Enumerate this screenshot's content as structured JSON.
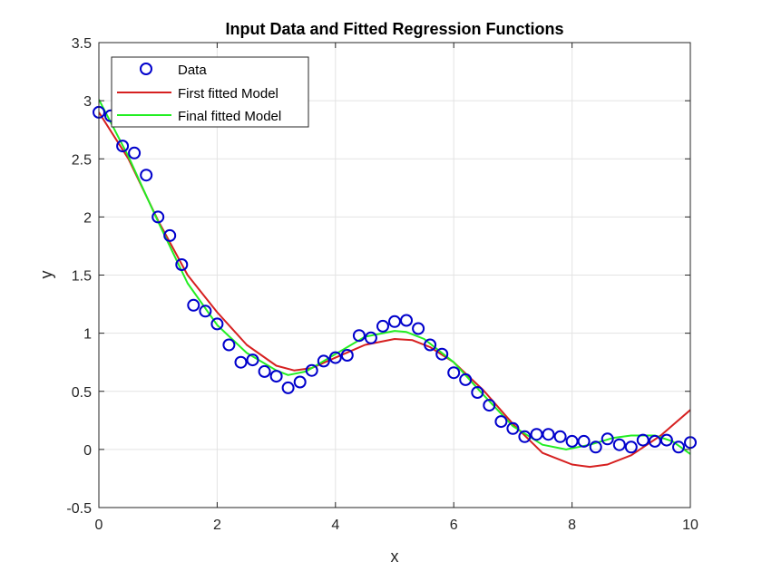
{
  "chart_data": {
    "type": "line",
    "title": "Input Data and Fitted Regression Functions",
    "xlabel": "x",
    "ylabel": "y",
    "xlim": [
      0,
      10
    ],
    "ylim": [
      -0.5,
      3.5
    ],
    "xticks": [
      0,
      2,
      4,
      6,
      8,
      10
    ],
    "yticks": [
      -0.5,
      0,
      0.5,
      1,
      1.5,
      2,
      2.5,
      3,
      3.5
    ],
    "xtick_labels": [
      "0",
      "2",
      "4",
      "6",
      "8",
      "10"
    ],
    "ytick_labels": [
      "-0.5",
      "0",
      "0.5",
      "1",
      "1.5",
      "2",
      "2.5",
      "3",
      "3.5"
    ],
    "grid": true,
    "legend_position": "top-left",
    "series": [
      {
        "name": "Data",
        "kind": "scatter",
        "marker": "circle-open",
        "color": "#0000cc",
        "x": [
          0.0,
          0.2,
          0.4,
          0.6,
          0.8,
          1.0,
          1.2,
          1.4,
          1.6,
          1.8,
          2.0,
          2.2,
          2.4,
          2.6,
          2.8,
          3.0,
          3.2,
          3.4,
          3.6,
          3.8,
          4.0,
          4.2,
          4.4,
          4.6,
          4.8,
          5.0,
          5.2,
          5.4,
          5.6,
          5.8,
          6.0,
          6.2,
          6.4,
          6.6,
          6.8,
          7.0,
          7.2,
          7.4,
          7.6,
          7.8,
          8.0,
          8.2,
          8.4,
          8.6,
          8.8,
          9.0,
          9.2,
          9.4,
          9.6,
          9.8,
          10.0
        ],
        "y": [
          2.9,
          2.87,
          2.61,
          2.55,
          2.36,
          2.0,
          1.84,
          1.59,
          1.24,
          1.19,
          1.08,
          0.9,
          0.75,
          0.77,
          0.67,
          0.63,
          0.53,
          0.58,
          0.68,
          0.76,
          0.79,
          0.81,
          0.98,
          0.96,
          1.06,
          1.1,
          1.11,
          1.04,
          0.9,
          0.82,
          0.66,
          0.6,
          0.49,
          0.38,
          0.24,
          0.18,
          0.11,
          0.13,
          0.13,
          0.11,
          0.07,
          0.07,
          0.02,
          0.09,
          0.04,
          0.02,
          0.08,
          0.07,
          0.08,
          0.02,
          0.06
        ]
      },
      {
        "name": "First fitted Model",
        "kind": "line",
        "color": "#d62020",
        "x": [
          0.0,
          0.5,
          1.0,
          1.5,
          2.0,
          2.5,
          3.0,
          3.3,
          3.6,
          4.0,
          4.5,
          5.0,
          5.3,
          5.6,
          6.0,
          6.5,
          7.0,
          7.5,
          8.0,
          8.3,
          8.6,
          9.0,
          9.5,
          10.0
        ],
        "y": [
          2.9,
          2.5,
          1.97,
          1.5,
          1.18,
          0.9,
          0.72,
          0.68,
          0.7,
          0.79,
          0.9,
          0.95,
          0.94,
          0.88,
          0.75,
          0.51,
          0.22,
          -0.03,
          -0.13,
          -0.15,
          -0.13,
          -0.05,
          0.12,
          0.34
        ]
      },
      {
        "name": "Final fitted Model",
        "kind": "line",
        "color": "#22ee22",
        "x": [
          0.0,
          0.5,
          1.0,
          1.5,
          2.0,
          2.5,
          3.0,
          3.2,
          3.5,
          4.0,
          4.5,
          5.0,
          5.2,
          5.5,
          6.0,
          6.5,
          7.0,
          7.5,
          7.9,
          8.3,
          8.7,
          9.0,
          9.4,
          9.7,
          10.0
        ],
        "y": [
          3.01,
          2.52,
          1.96,
          1.43,
          1.07,
          0.83,
          0.68,
          0.64,
          0.67,
          0.82,
          0.97,
          1.02,
          1.01,
          0.95,
          0.75,
          0.47,
          0.2,
          0.04,
          0.0,
          0.04,
          0.1,
          0.12,
          0.12,
          0.07,
          -0.04
        ]
      }
    ]
  }
}
